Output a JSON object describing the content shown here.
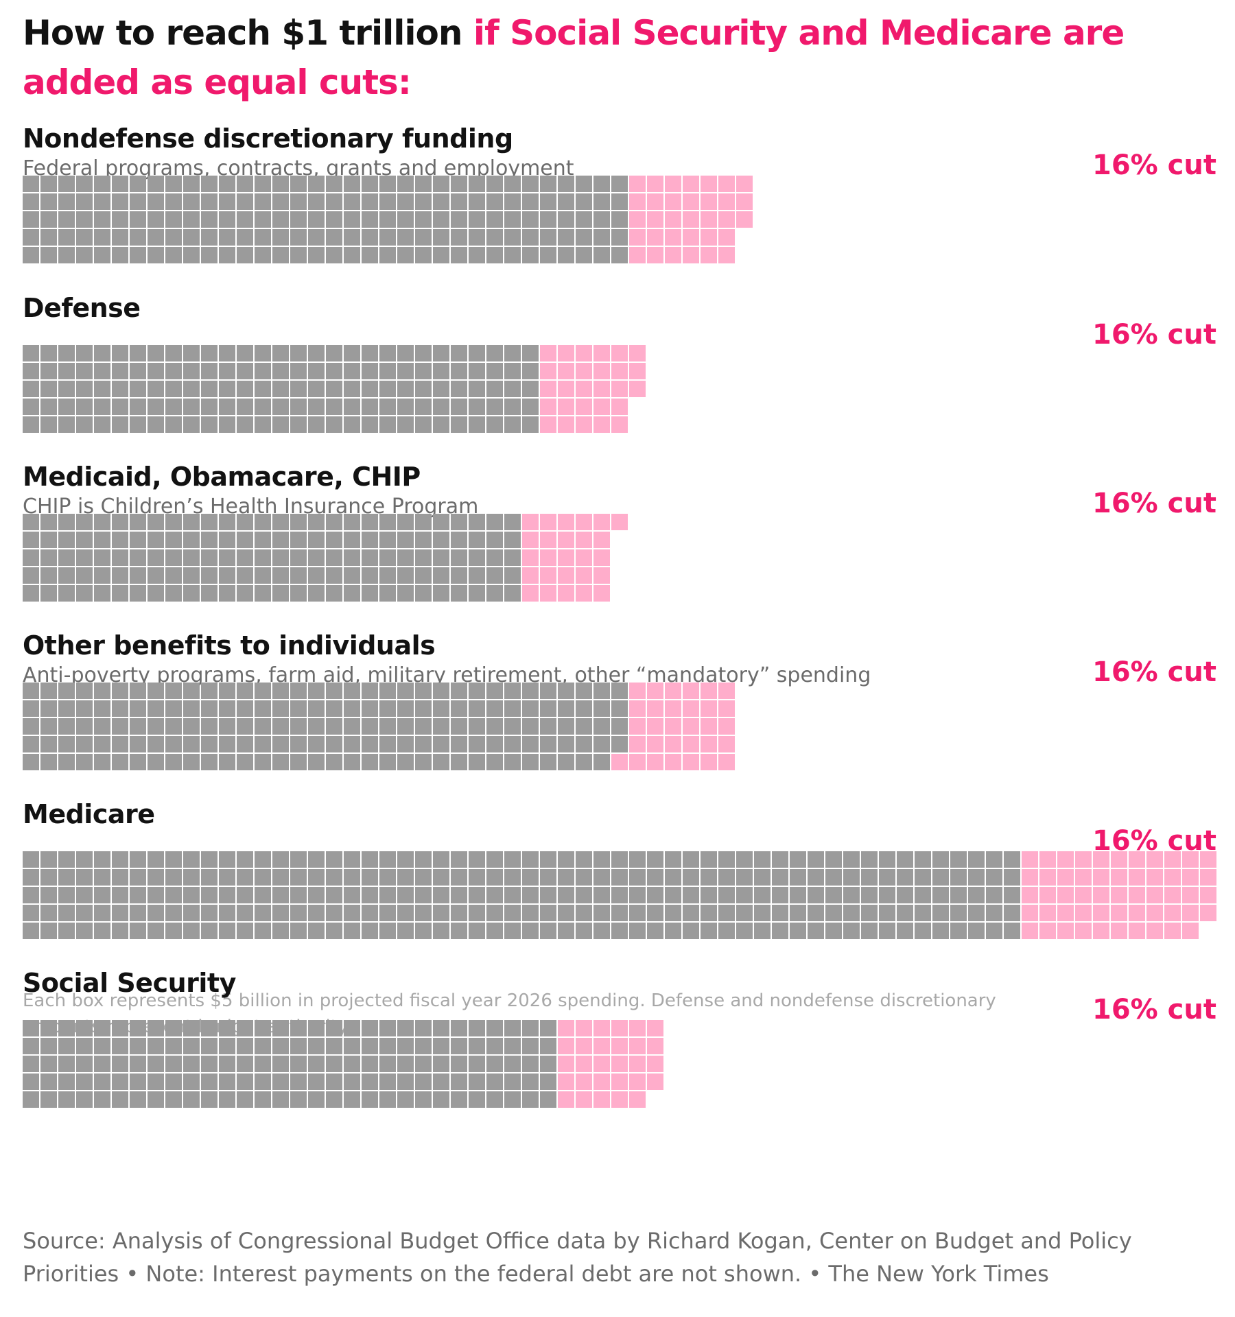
{
  "title": {
    "lead": "How to reach $1 trillion",
    "highlight": "if Social Security and Medicare are added as equal cuts:"
  },
  "footnote": "Each box represents $5 billion in projected fiscal year 2026 spending. Defense and nondefense discretionary amounts represent budget authority.",
  "source": "Source: Analysis of Congressional Budget Office data by Richard Kogan, Center on Budget and Policy Priorities • Note: Interest payments on the federal debt are not shown. • The New York Times",
  "colors": {
    "kept": "#9b9b9b",
    "cut": "#ffadcb",
    "accent": "#f0196c"
  },
  "chart_data": {
    "type": "waffle",
    "unit": "$5 billion per box",
    "rows_per_column": 5,
    "series": [
      {
        "name": "Nondefense discretionary funding",
        "subtitle": "Federal programs, contracts, grants and employment",
        "cut_label": "16% cut",
        "kept_boxes": 170,
        "cut_boxes": 33
      },
      {
        "name": "Defense",
        "subtitle": "",
        "cut_label": "16% cut",
        "kept_boxes": 145,
        "cut_boxes": 28
      },
      {
        "name": "Medicaid, Obamacare, CHIP",
        "subtitle": "CHIP is Children’s Health Insurance Program",
        "cut_label": "16% cut",
        "kept_boxes": 140,
        "cut_boxes": 26
      },
      {
        "name": "Other benefits to individuals",
        "subtitle": "Anti-poverty programs, farm aid, military retirement, other “mandatory” spending",
        "cut_label": "16% cut",
        "kept_boxes": 169,
        "cut_boxes": 31
      },
      {
        "name": "Medicare",
        "subtitle": "",
        "cut_label": "16% cut",
        "kept_boxes": 280,
        "cut_boxes": 54
      },
      {
        "name": "Social Security",
        "subtitle": "",
        "cut_label": "16% cut",
        "kept_boxes": 150,
        "cut_boxes": 29
      }
    ]
  }
}
